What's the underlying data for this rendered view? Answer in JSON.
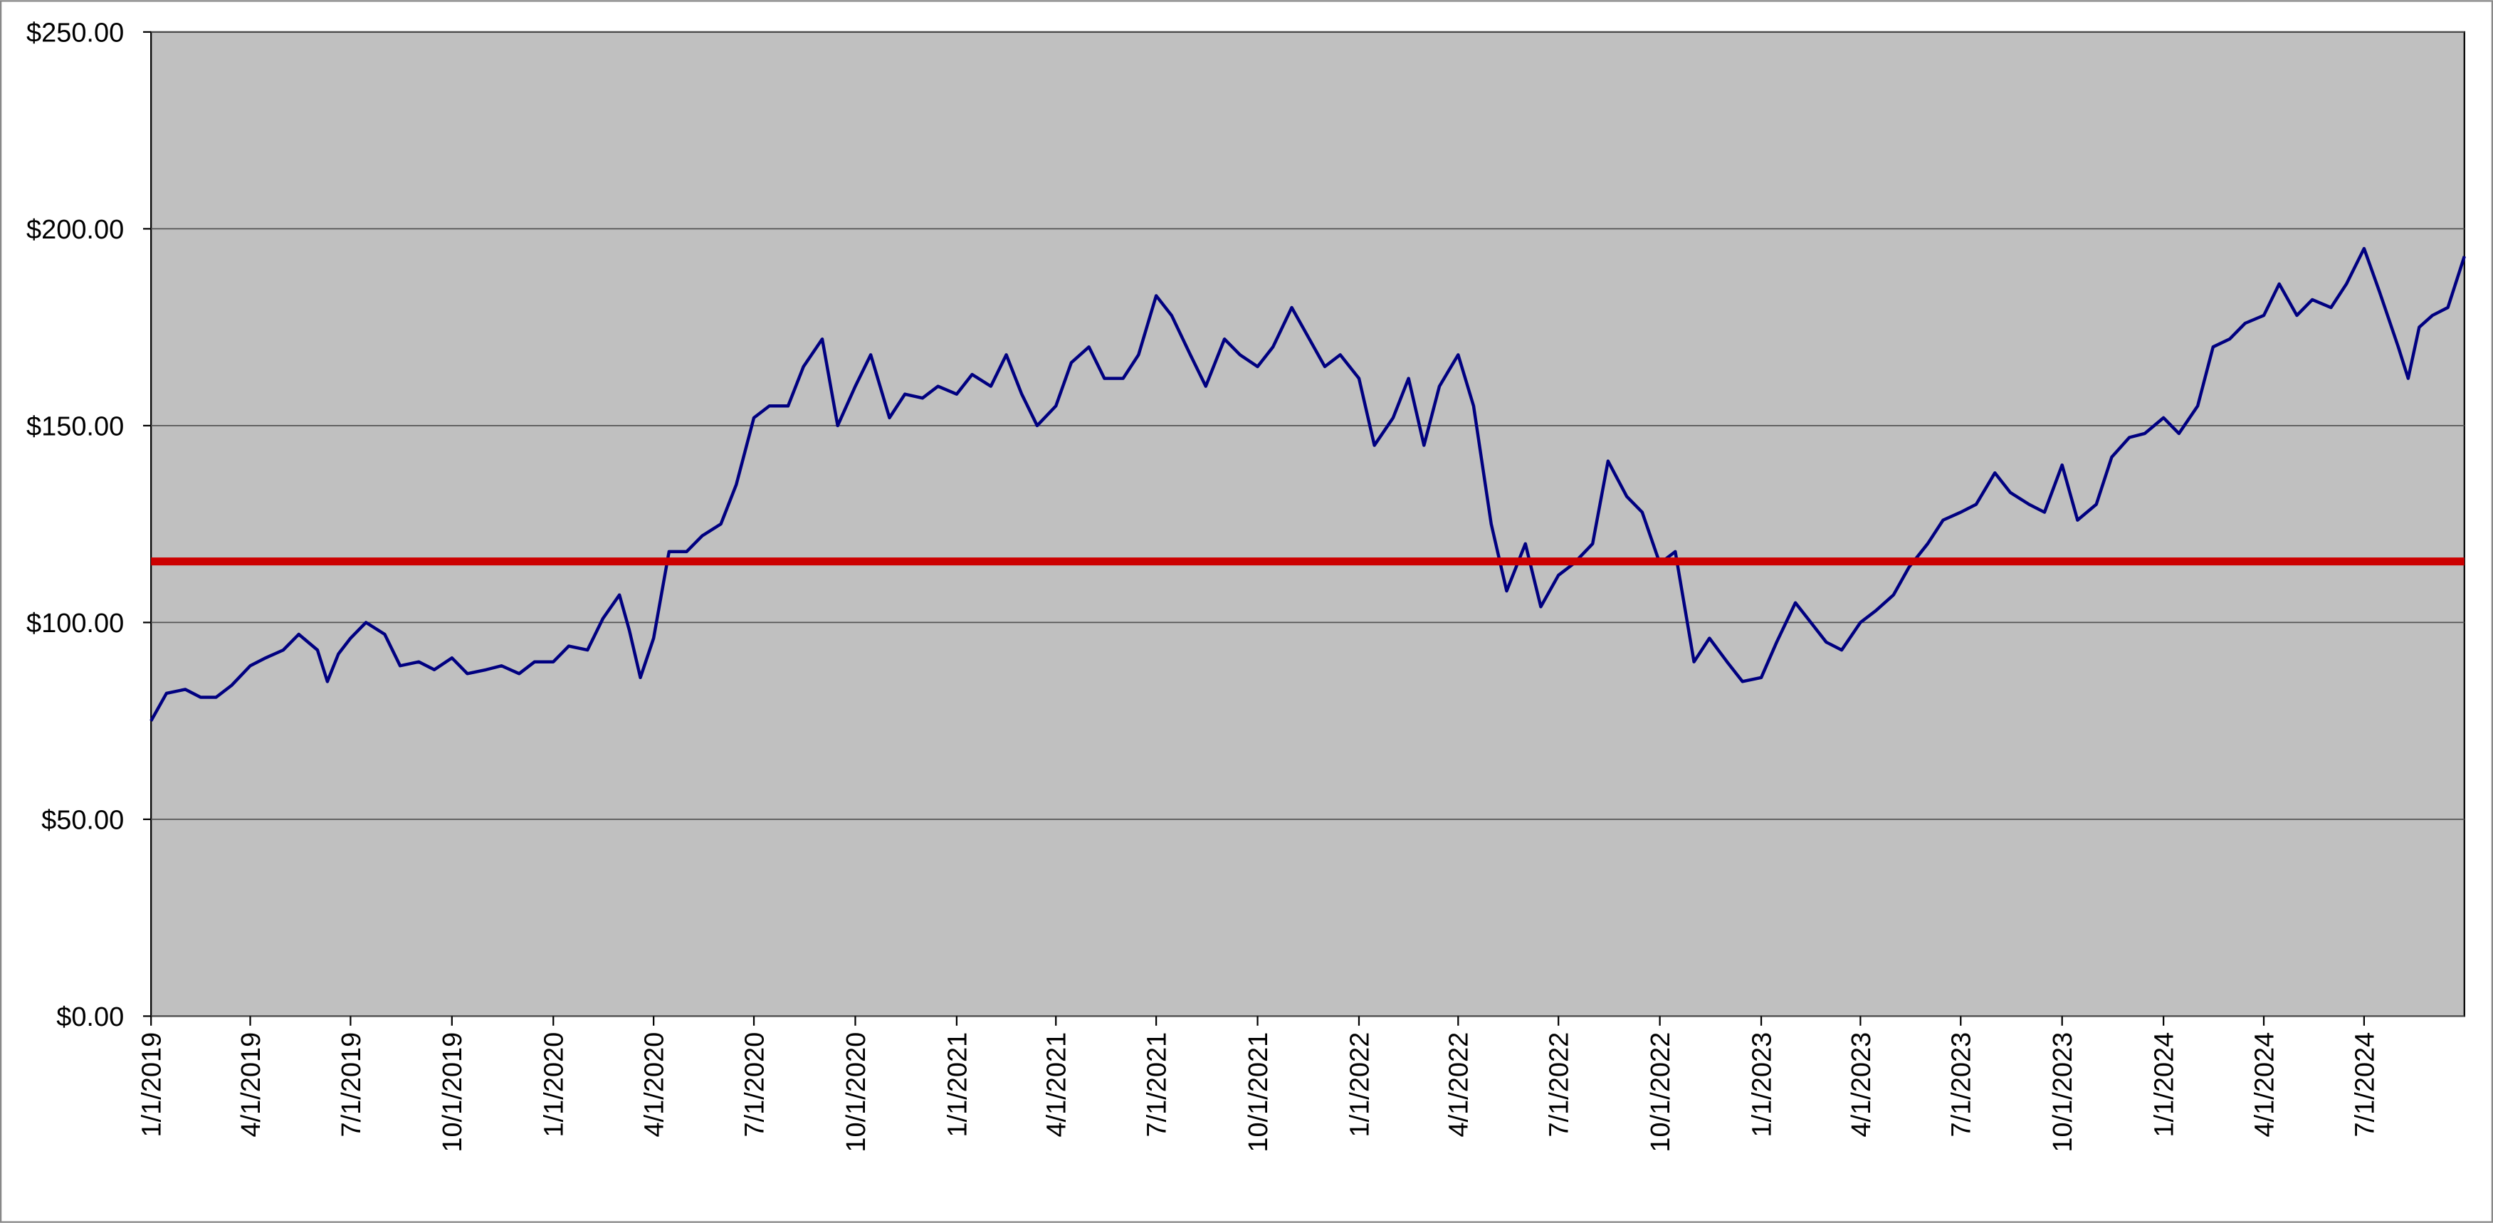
{
  "chart_data": {
    "type": "line",
    "xlim": [
      "1/1/2019",
      "9/30/2024"
    ],
    "xticks": [
      "1/1/2019",
      "4/1/2019",
      "7/1/2019",
      "10/1/2019",
      "1/1/2020",
      "4/1/2020",
      "7/1/2020",
      "10/1/2020",
      "1/1/2021",
      "4/1/2021",
      "7/1/2021",
      "10/1/2021",
      "1/1/2022",
      "4/1/2022",
      "7/1/2022",
      "10/1/2022",
      "1/1/2023",
      "4/1/2023",
      "7/1/2023",
      "10/1/2023",
      "1/1/2024",
      "4/1/2024",
      "7/1/2024"
    ],
    "ylim": [
      0,
      250
    ],
    "yticks": [
      {
        "value": 0,
        "label": "$0.00"
      },
      {
        "value": 50,
        "label": "$50.00"
      },
      {
        "value": 100,
        "label": "$100.00"
      },
      {
        "value": 150,
        "label": "$150.00"
      },
      {
        "value": 200,
        "label": "$200.00"
      },
      {
        "value": 250,
        "label": "$250.00"
      }
    ],
    "grid": true,
    "x": [
      "1/1/2019",
      "1/15/2019",
      "2/1/2019",
      "2/15/2019",
      "3/1/2019",
      "3/15/2019",
      "4/1/2019",
      "4/15/2019",
      "5/1/2019",
      "5/15/2019",
      "6/1/2019",
      "6/10/2019",
      "6/20/2019",
      "7/1/2019",
      "7/15/2019",
      "8/1/2019",
      "8/15/2019",
      "9/1/2019",
      "9/15/2019",
      "10/1/2019",
      "10/15/2019",
      "11/1/2019",
      "11/15/2019",
      "12/1/2019",
      "12/15/2019",
      "1/1/2020",
      "1/15/2020",
      "2/1/2020",
      "2/15/2020",
      "3/1/2020",
      "3/10/2020",
      "3/20/2020",
      "4/1/2020",
      "4/15/2020",
      "5/1/2020",
      "5/15/2020",
      "6/1/2020",
      "6/15/2020",
      "7/1/2020",
      "7/15/2020",
      "8/1/2020",
      "8/15/2020",
      "9/1/2020",
      "9/15/2020",
      "10/1/2020",
      "10/15/2020",
      "11/1/2020",
      "11/15/2020",
      "12/1/2020",
      "12/15/2020",
      "1/1/2021",
      "1/15/2021",
      "2/1/2021",
      "2/15/2021",
      "3/1/2021",
      "3/15/2021",
      "4/1/2021",
      "4/15/2021",
      "5/1/2021",
      "5/15/2021",
      "6/1/2021",
      "6/15/2021",
      "7/1/2021",
      "7/15/2021",
      "8/1/2021",
      "8/15/2021",
      "9/1/2021",
      "9/15/2021",
      "10/1/2021",
      "10/15/2021",
      "11/1/2021",
      "11/15/2021",
      "12/1/2021",
      "12/15/2021",
      "1/1/2022",
      "1/15/2022",
      "2/1/2022",
      "2/15/2022",
      "3/1/2022",
      "3/15/2022",
      "4/1/2022",
      "4/15/2022",
      "5/1/2022",
      "5/15/2022",
      "6/1/2022",
      "6/15/2022",
      "7/1/2022",
      "7/15/2022",
      "8/1/2022",
      "8/15/2022",
      "9/1/2022",
      "9/15/2022",
      "10/1/2022",
      "10/15/2022",
      "11/1/2022",
      "11/15/2022",
      "12/1/2022",
      "12/15/2022",
      "1/1/2023",
      "1/15/2023",
      "2/1/2023",
      "2/15/2023",
      "3/1/2023",
      "3/15/2023",
      "4/1/2023",
      "4/15/2023",
      "5/1/2023",
      "5/15/2023",
      "6/1/2023",
      "6/15/2023",
      "7/1/2023",
      "7/15/2023",
      "8/1/2023",
      "8/15/2023",
      "9/1/2023",
      "9/15/2023",
      "10/1/2023",
      "10/15/2023",
      "11/1/2023",
      "11/15/2023",
      "12/1/2023",
      "12/15/2023",
      "1/1/2024",
      "1/15/2024",
      "2/1/2024",
      "2/15/2024",
      "3/1/2024",
      "3/15/2024",
      "4/1/2024",
      "4/15/2024",
      "5/1/2024",
      "5/15/2024",
      "6/1/2024",
      "6/15/2024",
      "7/1/2024",
      "7/15/2024",
      "8/1/2024",
      "8/10/2024",
      "8/20/2024",
      "9/1/2024",
      "9/15/2024",
      "9/30/2024"
    ],
    "series": [
      {
        "color": "#000080",
        "values": [
          75,
          82,
          83,
          81,
          81,
          84,
          89,
          91,
          93,
          97,
          93,
          85,
          92,
          96,
          100,
          97,
          89,
          90,
          88,
          91,
          87,
          88,
          89,
          87,
          90,
          90,
          94,
          93,
          101,
          107,
          98,
          86,
          96,
          118,
          118,
          122,
          125,
          135,
          152,
          155,
          155,
          165,
          172,
          150,
          160,
          168,
          152,
          158,
          157,
          160,
          158,
          163,
          160,
          168,
          158,
          150,
          155,
          166,
          170,
          162,
          162,
          168,
          183,
          178,
          168,
          160,
          172,
          168,
          165,
          170,
          180,
          173,
          165,
          168,
          162,
          145,
          152,
          162,
          145,
          160,
          168,
          155,
          125,
          108,
          120,
          104,
          112,
          115,
          120,
          141,
          132,
          128,
          115,
          118,
          90,
          96,
          90,
          85,
          86,
          95,
          105,
          100,
          95,
          93,
          100,
          103,
          107,
          114,
          120,
          126,
          128,
          130,
          138,
          133,
          130,
          128,
          140,
          126,
          130,
          142,
          147,
          148,
          152,
          148,
          155,
          170,
          172,
          176,
          178,
          186,
          178,
          182,
          180,
          186,
          195,
          184,
          170,
          162,
          175,
          178,
          180,
          193
        ]
      }
    ],
    "reference_line": {
      "value": 115.5,
      "color": "#cc0000"
    }
  }
}
